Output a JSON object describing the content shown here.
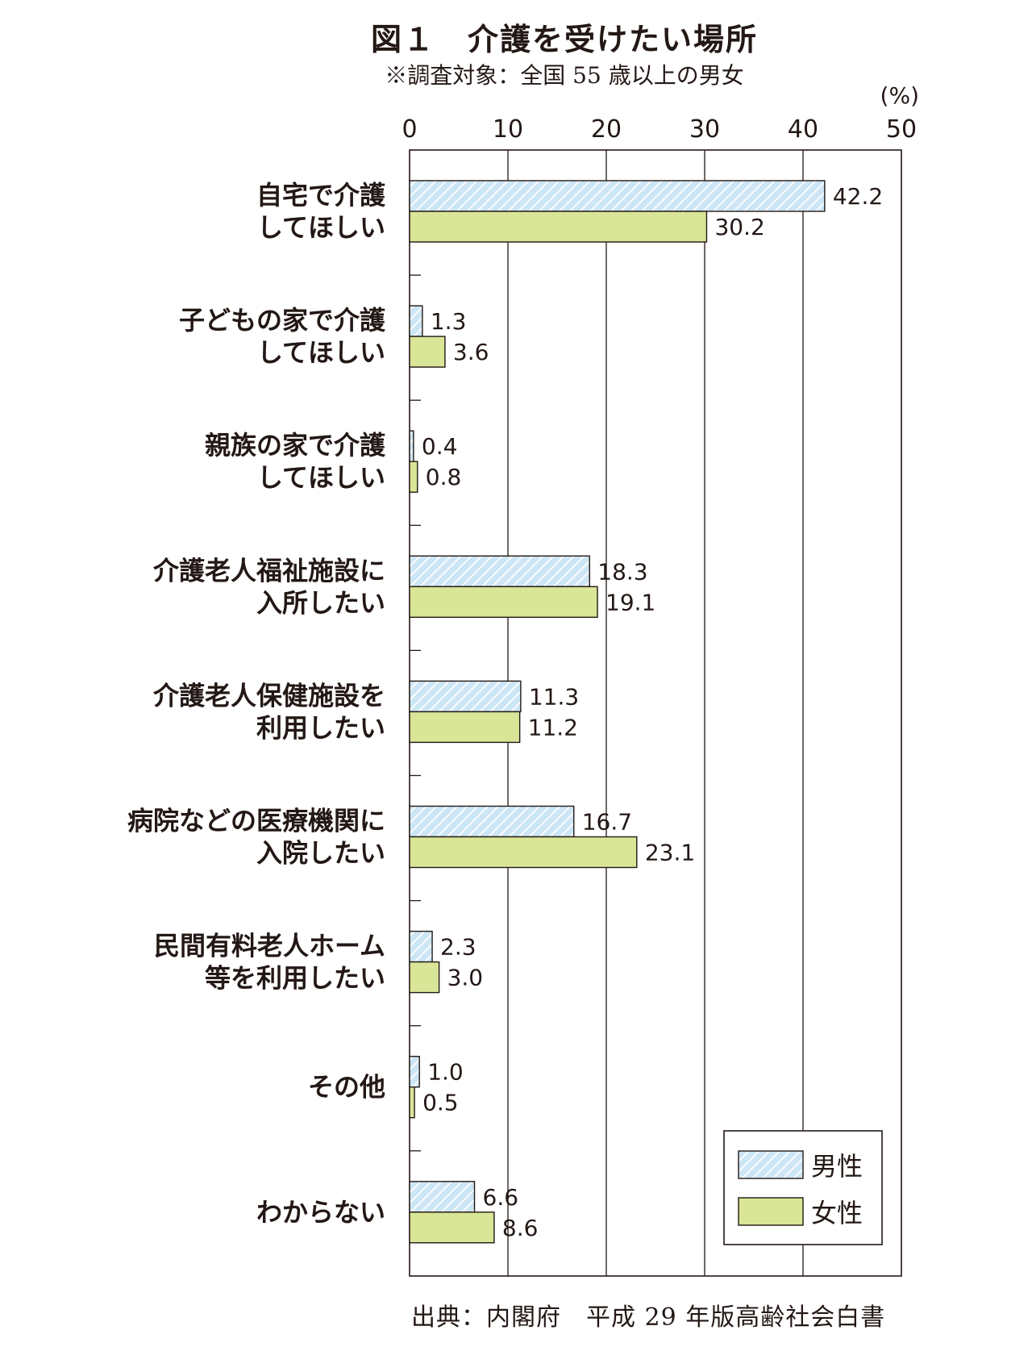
{
  "figure": {
    "title": "図１　介護を受けたい場所",
    "subtitle": "※調査対象：全国 55 歳以上の男女",
    "source": "出典：内閣府　平成 29 年版高齢社会白書"
  },
  "chart_data": {
    "type": "bar",
    "orientation": "horizontal",
    "unit_label": "(%)",
    "xlim": [
      0,
      50
    ],
    "x_ticks": [
      "0",
      "10",
      "20",
      "30",
      "40",
      "50"
    ],
    "grid": true,
    "legend_position": "bottom-right",
    "categories": [
      [
        "自宅で介護",
        "してほしい"
      ],
      [
        "子どもの家で介護",
        "してほしい"
      ],
      [
        "親族の家で介護",
        "してほしい"
      ],
      [
        "介護老人福祉施設に",
        "入所したい"
      ],
      [
        "介護老人保健施設を",
        "利用したい"
      ],
      [
        "病院などの医療機関に",
        "入院したい"
      ],
      [
        "民間有料老人ホーム",
        "等を利用したい"
      ],
      [
        "その他"
      ],
      [
        "わからない"
      ]
    ],
    "series": [
      {
        "name": "男性",
        "pattern": "hatched-light-blue",
        "color": "#cde6f5",
        "values": [
          42.2,
          1.3,
          0.4,
          18.3,
          11.3,
          16.7,
          2.3,
          1.0,
          6.6
        ],
        "labels": [
          "42.2",
          "1.3",
          "0.4",
          "18.3",
          "11.3",
          "16.7",
          "2.3",
          "1.0",
          "6.6"
        ]
      },
      {
        "name": "女性",
        "pattern": "solid",
        "color": "#d9e597",
        "values": [
          30.2,
          3.6,
          0.8,
          19.1,
          11.2,
          23.1,
          3.0,
          0.5,
          8.6
        ],
        "labels": [
          "30.2",
          "3.6",
          "0.8",
          "19.1",
          "11.2",
          "23.1",
          "3.0",
          "0.5",
          "8.6"
        ]
      }
    ]
  }
}
